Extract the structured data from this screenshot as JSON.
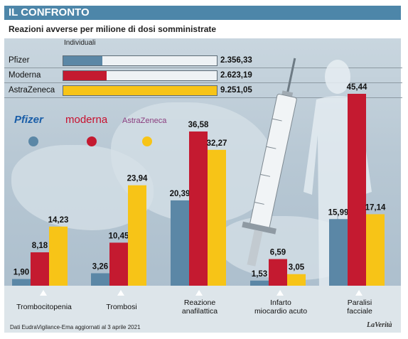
{
  "header": {
    "title": "IL CONFRONTO"
  },
  "subtitle": "Reazioni avverse per milione di dosi somministrate",
  "summary": {
    "heading": "Individuali",
    "rows": [
      {
        "name": "Pfizer",
        "value": 2356.33,
        "display": "2.356,33"
      },
      {
        "name": "Moderna",
        "value": 2623.19,
        "display": "2.623,19"
      },
      {
        "name": "AstraZeneca",
        "value": 9251.05,
        "display": "9.251,05"
      }
    ]
  },
  "brands": {
    "pfizer": "Pfizer",
    "moderna": "moderna",
    "astrazeneca": "AstraZeneca"
  },
  "colors": {
    "pfizer": "#5b87a6",
    "moderna": "#c41a30",
    "astrazeneca": "#f7c417"
  },
  "chart_data": {
    "type": "bar",
    "categories": [
      "Trombocitopenia",
      "Trombosi",
      "Reazione anafilattica",
      "Infarto miocardio acuto",
      "Paralisi facciale"
    ],
    "series": [
      {
        "name": "Pfizer",
        "values": [
          1.9,
          3.26,
          20.39,
          1.53,
          15.99
        ],
        "labels": [
          "1,90",
          "3,26",
          "20,39",
          "1,53",
          "15,99"
        ]
      },
      {
        "name": "Moderna",
        "values": [
          8.18,
          10.45,
          36.58,
          6.59,
          45.44
        ],
        "labels": [
          "8,18",
          "10,45",
          "36,58",
          "6,59",
          "45,44"
        ]
      },
      {
        "name": "AstraZeneca",
        "values": [
          14.23,
          23.94,
          32.27,
          3.05,
          17.14
        ],
        "labels": [
          "14,23",
          "23,94",
          "32,27",
          "3,05",
          "17,14"
        ]
      }
    ],
    "ylim": [
      0,
      45.44
    ]
  },
  "category_labels": [
    {
      "line1": "Trombocitopenia",
      "line2": ""
    },
    {
      "line1": "Trombosi",
      "line2": ""
    },
    {
      "line1": "Reazione",
      "line2": "anafilattica"
    },
    {
      "line1": "Infarto",
      "line2": "miocardio acuto"
    },
    {
      "line1": "Paralisi",
      "line2": "facciale"
    }
  ],
  "footer": {
    "source": "Dati EudraVigilance-Ema aggiornati al 3 aprile 2021",
    "logo": "LaVerità"
  }
}
